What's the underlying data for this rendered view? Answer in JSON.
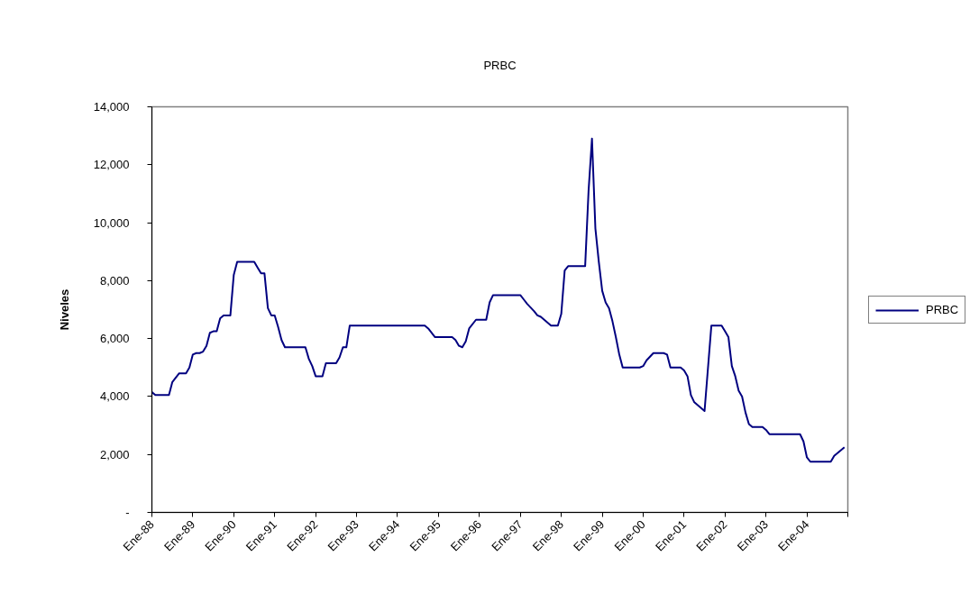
{
  "chart_data": {
    "type": "line",
    "title": "PRBC",
    "ylabel": "Niveles",
    "x": [
      "1988-01",
      "1988-02",
      "1988-06",
      "1988-07",
      "1988-09",
      "1988-11",
      "1988-12",
      "1989-01",
      "1989-02",
      "1989-03",
      "1989-04",
      "1989-05",
      "1989-06",
      "1989-07",
      "1989-08",
      "1989-09",
      "1989-10",
      "1989-12",
      "1990-01",
      "1990-02",
      "1990-07",
      "1990-08",
      "1990-09",
      "1990-10",
      "1990-11",
      "1990-12",
      "1991-01",
      "1991-02",
      "1991-03",
      "1991-04",
      "1991-10",
      "1991-11",
      "1991-12",
      "1992-01",
      "1992-03",
      "1992-04",
      "1992-07",
      "1992-08",
      "1992-09",
      "1992-10",
      "1992-11",
      "1994-09",
      "1994-10",
      "1994-12",
      "1995-05",
      "1995-06",
      "1995-07",
      "1995-08",
      "1995-09",
      "1995-10",
      "1995-12",
      "1996-03",
      "1996-04",
      "1996-05",
      "1997-01",
      "1997-02",
      "1997-03",
      "1997-05",
      "1997-06",
      "1997-07",
      "1997-09",
      "1997-10",
      "1997-12",
      "1998-01",
      "1998-02",
      "1998-03",
      "1998-08",
      "1998-09",
      "1998-10",
      "1998-11",
      "1998-12",
      "1999-01",
      "1999-02",
      "1999-03",
      "1999-04",
      "1999-05",
      "1999-06",
      "1999-07",
      "1999-12",
      "2000-01",
      "2000-02",
      "2000-04",
      "2000-07",
      "2000-08",
      "2000-09",
      "2000-12",
      "2001-01",
      "2001-02",
      "2001-03",
      "2001-04",
      "2001-05",
      "2001-07",
      "2001-09",
      "2001-12",
      "2002-01",
      "2002-02",
      "2002-03",
      "2002-04",
      "2002-05",
      "2002-06",
      "2002-07",
      "2002-08",
      "2002-09",
      "2002-12",
      "2003-01",
      "2003-02",
      "2003-11",
      "2003-12",
      "2004-01",
      "2004-02",
      "2004-08",
      "2004-09",
      "2004-12"
    ],
    "series": [
      {
        "name": "PRBC",
        "color": "#000080",
        "values": [
          4150,
          4050,
          4050,
          4500,
          4800,
          4800,
          5000,
          5450,
          5500,
          5500,
          5550,
          5750,
          6200,
          6250,
          6250,
          6700,
          6800,
          6800,
          8200,
          8650,
          8650,
          8450,
          8250,
          8250,
          7050,
          6800,
          6800,
          6400,
          5950,
          5700,
          5700,
          5300,
          5050,
          4700,
          4700,
          5150,
          5150,
          5350,
          5700,
          5700,
          6450,
          6450,
          6350,
          6050,
          6050,
          5950,
          5750,
          5700,
          5900,
          6350,
          6650,
          6650,
          7250,
          7500,
          7500,
          7350,
          7200,
          6950,
          6800,
          6750,
          6550,
          6450,
          6450,
          6850,
          8350,
          8500,
          8500,
          11100,
          12900,
          9800,
          8650,
          7650,
          7250,
          7050,
          6600,
          6050,
          5450,
          5000,
          5000,
          5050,
          5250,
          5500,
          5500,
          5450,
          5000,
          5000,
          4900,
          4700,
          4050,
          3800,
          3700,
          3500,
          6450,
          6450,
          6250,
          6050,
          5050,
          4700,
          4200,
          4000,
          3450,
          3050,
          2950,
          2950,
          2850,
          2700,
          2700,
          2450,
          1900,
          1750,
          1750,
          1950,
          2250
        ]
      }
    ],
    "xlim": [
      "1988-01",
      "2005-01"
    ],
    "xticks": [
      {
        "value": "1988-01",
        "label": "Ene-88"
      },
      {
        "value": "1989-01",
        "label": "Ene-89"
      },
      {
        "value": "1990-01",
        "label": "Ene-90"
      },
      {
        "value": "1991-01",
        "label": "Ene-91"
      },
      {
        "value": "1992-01",
        "label": "Ene-92"
      },
      {
        "value": "1993-01",
        "label": "Ene-93"
      },
      {
        "value": "1994-01",
        "label": "Ene-94"
      },
      {
        "value": "1995-01",
        "label": "Ene-95"
      },
      {
        "value": "1996-01",
        "label": "Ene-96"
      },
      {
        "value": "1997-01",
        "label": "Ene-97"
      },
      {
        "value": "1998-01",
        "label": "Ene-98"
      },
      {
        "value": "1999-01",
        "label": "Ene-99"
      },
      {
        "value": "2000-01",
        "label": "Ene-00"
      },
      {
        "value": "2001-01",
        "label": "Ene-01"
      },
      {
        "value": "2002-01",
        "label": "Ene-02"
      },
      {
        "value": "2003-01",
        "label": "Ene-03"
      },
      {
        "value": "2004-01",
        "label": "Ene-04"
      },
      {
        "value": "2005-01",
        "label": null
      }
    ],
    "ylim": [
      0,
      14000
    ],
    "yticks": [
      {
        "value": 0,
        "label": "-"
      },
      {
        "value": 2000,
        "label": "2,000"
      },
      {
        "value": 4000,
        "label": "4,000"
      },
      {
        "value": 6000,
        "label": "6,000"
      },
      {
        "value": 8000,
        "label": "8,000"
      },
      {
        "value": 10000,
        "label": "10,000"
      },
      {
        "value": 12000,
        "label": "12,000"
      },
      {
        "value": 14000,
        "label": "14,000"
      }
    ],
    "grid": false,
    "legend": "right"
  }
}
